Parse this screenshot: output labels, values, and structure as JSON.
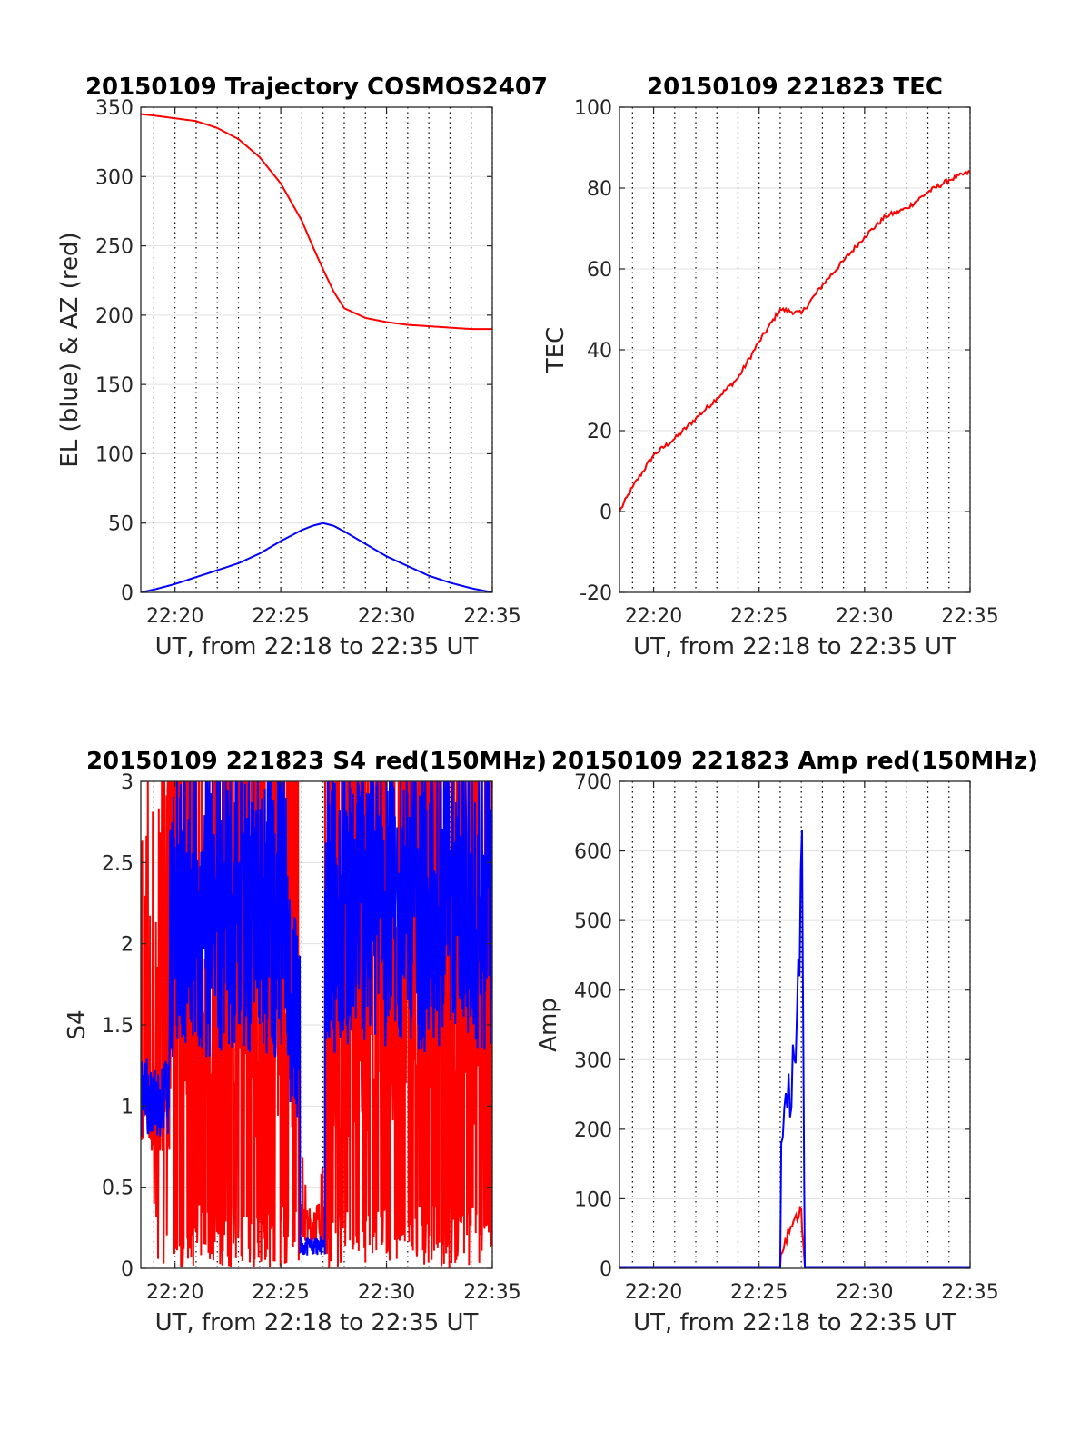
{
  "colors": {
    "red": "#ff0000",
    "blue": "#0000ff",
    "grid_major": "#e0e0e0",
    "grid_minor": "#000000",
    "axis": "#262626"
  },
  "chart_data": [
    {
      "type": "line",
      "title": "20150109 Trajectory COSMOS2407",
      "xlabel": "UT, from 22:18 to 22:35 UT",
      "ylabel": "EL (blue) & AZ (red)",
      "xlim": [
        "22:18:23",
        "22:35:00"
      ],
      "ylim": [
        0,
        350
      ],
      "x_ticks": [
        "22:20",
        "22:25",
        "22:30",
        "22:35"
      ],
      "y_ticks": [
        "0",
        "50",
        "100",
        "150",
        "200",
        "250",
        "300",
        "350"
      ],
      "grid": "major y gray, dotted x every minute",
      "x": [
        "22:18:23",
        "22:19",
        "22:20",
        "22:21",
        "22:22",
        "22:23",
        "22:24",
        "22:25",
        "22:26",
        "22:26:30",
        "22:27",
        "22:27:30",
        "22:28",
        "22:29",
        "22:30",
        "22:31",
        "22:32",
        "22:33",
        "22:34",
        "22:35"
      ],
      "series": [
        {
          "color": "red",
          "values": [
            345,
            344,
            342,
            340,
            335,
            327,
            314,
            295,
            268,
            250,
            233,
            217,
            205,
            198,
            195,
            193,
            192,
            191,
            190,
            190
          ]
        },
        {
          "color": "blue",
          "values": [
            0,
            2,
            6,
            11,
            16,
            21,
            28,
            37,
            45,
            48,
            50,
            48,
            44,
            35,
            26,
            19,
            12,
            7,
            3,
            0
          ]
        }
      ]
    },
    {
      "type": "line",
      "title": "20150109 221823 TEC",
      "xlabel": "UT, from 22:18 to 22:35 UT",
      "ylabel": "TEC",
      "xlim": [
        "22:18:23",
        "22:35:00"
      ],
      "ylim": [
        -20,
        100
      ],
      "x_ticks": [
        "22:20",
        "22:25",
        "22:30",
        "22:35"
      ],
      "y_ticks": [
        "-20",
        "0",
        "20",
        "40",
        "60",
        "80",
        "100"
      ],
      "grid": "major y gray, dotted x every minute",
      "x": [
        "22:18:23",
        "22:19",
        "22:20",
        "22:21",
        "22:22",
        "22:23",
        "22:24",
        "22:25",
        "22:26",
        "22:27",
        "22:28",
        "22:29",
        "22:30",
        "22:31",
        "22:32",
        "22:33",
        "22:34",
        "22:35"
      ],
      "series": [
        {
          "color": "red",
          "values": [
            0,
            6,
            14,
            18,
            23,
            28,
            33,
            42,
            50,
            49,
            56,
            62,
            68,
            73,
            75,
            79,
            82,
            84
          ]
        }
      ]
    },
    {
      "type": "line",
      "title": "20150109 221823 S4 red(150MHz)",
      "xlabel": "UT, from 22:18 to 22:35 UT",
      "ylabel": "S4",
      "xlim": [
        "22:18:23",
        "22:35:00"
      ],
      "ylim": [
        0,
        3
      ],
      "x_ticks": [
        "22:20",
        "22:25",
        "22:30",
        "22:35"
      ],
      "y_ticks": [
        "0",
        "0.5",
        "1",
        "1.5",
        "2",
        "2.5",
        "3"
      ],
      "grid": "major y gray, dotted x every minute",
      "note": "dense noisy series; red spikes between 0 and 3, blue envelope; drop to about 0.1-0.3 near 22:26-22:27",
      "series": [
        {
          "color": "red",
          "pattern": "spiky 0 to 3",
          "low_window": [
            "22:25:55",
            "22:27:05"
          ],
          "low_level": 0.2
        },
        {
          "color": "blue",
          "pattern": "1.0 to 3",
          "low_window": [
            "22:25:55",
            "22:27:05"
          ],
          "low_level": 0.1
        }
      ]
    },
    {
      "type": "line",
      "title": "20150109 221823 Amp red(150MHz)",
      "xlabel": "UT, from 22:18 to 22:35 UT",
      "ylabel": "Amp",
      "xlim": [
        "22:18:23",
        "22:35:00"
      ],
      "ylim": [
        0,
        700
      ],
      "x_ticks": [
        "22:20",
        "22:25",
        "22:30",
        "22:35"
      ],
      "y_ticks": [
        "0",
        "100",
        "200",
        "300",
        "400",
        "500",
        "600",
        "700"
      ],
      "grid": "major y gray, dotted x every minute",
      "series": [
        {
          "color": "red",
          "x": [
            "22:18:23",
            "22:26:00",
            "22:26:02",
            "22:26:30",
            "22:27:00",
            "22:27:05",
            "22:27:10",
            "22:35:00"
          ],
          "values": [
            2,
            2,
            20,
            60,
            85,
            40,
            2,
            2
          ]
        },
        {
          "color": "blue",
          "x": [
            "22:18:23",
            "22:26:00",
            "22:26:03",
            "22:26:20",
            "22:26:40",
            "22:26:55",
            "22:27:02",
            "22:27:06",
            "22:27:10",
            "22:35:00"
          ],
          "values": [
            2,
            2,
            180,
            230,
            300,
            420,
            630,
            300,
            2,
            2
          ]
        }
      ]
    }
  ]
}
